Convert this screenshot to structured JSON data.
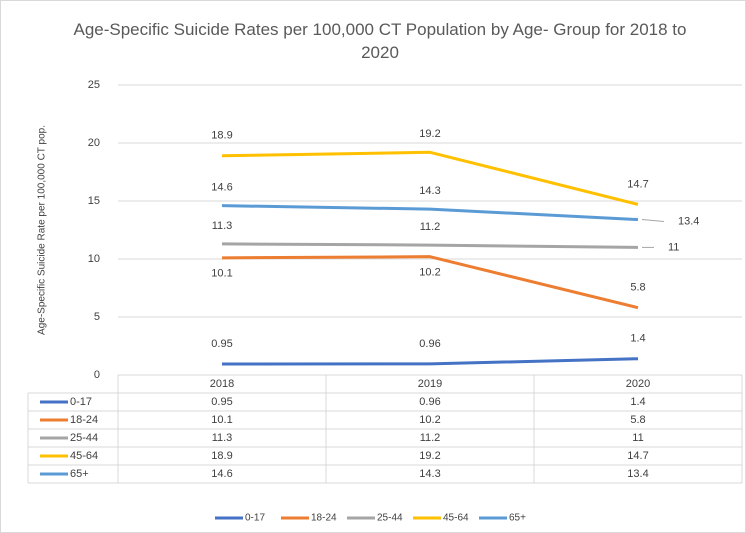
{
  "chart_data": {
    "type": "line",
    "title": "Age-Specific Suicide Rates per 100,000 CT Population by Age- Group for 2018 to 2020",
    "y_label": "Age-Specific Suicide Rate per 100,000 CT pop.",
    "categories": [
      "2018",
      "2019",
      "2020"
    ],
    "series": [
      {
        "name": "0-17",
        "color": "#4472c4",
        "values": [
          0.95,
          0.96,
          1.4
        ]
      },
      {
        "name": "18-24",
        "color": "#ed7d31",
        "values": [
          10.1,
          10.2,
          5.8
        ]
      },
      {
        "name": "25-44",
        "color": "#a5a5a5",
        "values": [
          11.3,
          11.2,
          11
        ]
      },
      {
        "name": "45-64",
        "color": "#ffc000",
        "values": [
          18.9,
          19.2,
          14.7
        ]
      },
      {
        "name": "65+",
        "color": "#5b9bd5",
        "values": [
          14.6,
          14.3,
          13.4
        ]
      }
    ],
    "ylim": [
      0,
      25
    ],
    "yticks": [
      0,
      5,
      10,
      15,
      20,
      25
    ],
    "grid": true,
    "legend": "bottom",
    "data_table": true
  }
}
